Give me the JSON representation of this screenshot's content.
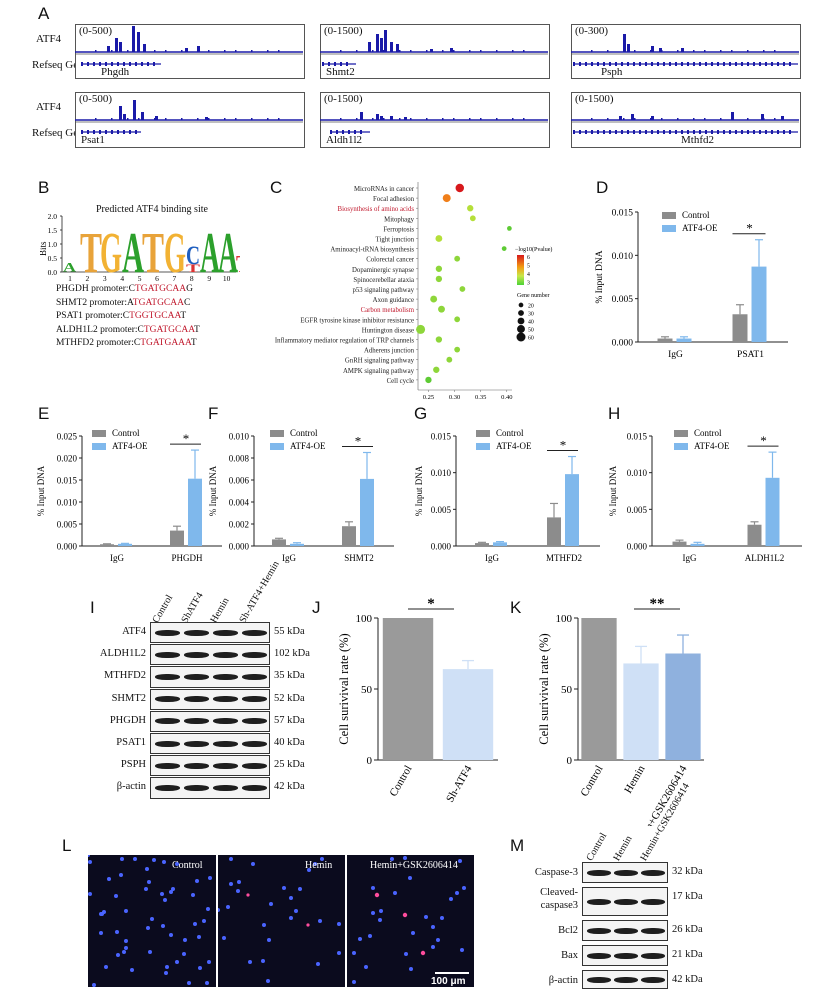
{
  "panels": {
    "A": "A",
    "B": "B",
    "C": "C",
    "D": "D",
    "E": "E",
    "F": "F",
    "G": "G",
    "H": "H",
    "I": "I",
    "J": "J",
    "K": "K",
    "L": "L",
    "M": "M"
  },
  "tracks": {
    "row_labels": {
      "atf4": "ATF4",
      "refseq": "Refseq Genes"
    },
    "items": [
      {
        "range": "(0-500)",
        "gene": "Phgdh"
      },
      {
        "range": "(0-1500)",
        "gene": "Shmt2"
      },
      {
        "range": "(0-300)",
        "gene": "Psph"
      },
      {
        "range": "(0-500)",
        "gene": "Psat1"
      },
      {
        "range": "(0-1500)",
        "gene": "Aldh1l2"
      },
      {
        "range": "(0-1500)",
        "gene": "Mthfd2"
      }
    ]
  },
  "motif": {
    "title": "Predicted ATF4 binding site",
    "ylabel": "Bits",
    "yticks": [
      "2.0",
      "1.5",
      "1.0",
      "0.5",
      "0.0"
    ],
    "positions": [
      "1",
      "2",
      "3",
      "4",
      "5",
      "6",
      "7",
      "8",
      "9",
      "10"
    ],
    "rows": [
      {
        "name": "PHGDH promoter:",
        "pre": "C",
        "site": "TGATGCAA",
        "post": "G"
      },
      {
        "name": "SHMT2 promoter:",
        "pre": "A",
        "site": "TGATGCAA",
        "post": "C"
      },
      {
        "name": "PSAT1 promoter:",
        "pre": "C",
        "site": "TGGTGCAA",
        "post": "T"
      },
      {
        "name": "ALDH1L2 promoter:",
        "pre": "C",
        "site": "TGATGCAA",
        "post": "T"
      },
      {
        "name": "MTHFD2 promoter:",
        "pre": "C",
        "site": "TGATGAAA",
        "post": "T"
      }
    ]
  },
  "kegg": {
    "terms": [
      "MicroRNAs in cancer",
      "Focal adhesion",
      "Biosynthesis of amino acids",
      "Mitophagy",
      "Ferroptosis",
      "Tight junction",
      "Aminoacyl-tRNA biosynthesis",
      "Colorectal cancer",
      "Dopaminergic synapse",
      "Spinocerebellar ataxia",
      "p53 signaling pathway",
      "Axon guidance",
      "Carbon metabolism",
      "EGFR tyrosine kinase inhibitor resistance",
      "Huntington disease",
      "Inflammatory mediator regulation of TRP channels",
      "Adherens junction",
      "GnRH signaling pathway",
      "AMPK signaling pathway",
      "Cell cycle"
    ],
    "xlabel": "Rich factor",
    "xticks": [
      "0.25",
      "0.30",
      "0.35",
      "0.40"
    ],
    "legend_color_title": "−log10(Pvalue)",
    "legend_color_ticks": [
      "6",
      "5",
      "4",
      "3"
    ],
    "legend_size_title": "Gene number",
    "legend_size_ticks": [
      "20",
      "30",
      "40",
      "50",
      "60"
    ]
  },
  "chart_data": [
    {
      "panel": "C",
      "type": "scatter",
      "xlabel": "Rich factor",
      "xlim": [
        0.23,
        0.41
      ],
      "categories": [
        "MicroRNAs in cancer",
        "Focal adhesion",
        "Biosynthesis of amino acids",
        "Mitophagy",
        "Ferroptosis",
        "Tight junction",
        "Aminoacyl-tRNA biosynthesis",
        "Colorectal cancer",
        "Dopaminergic synapse",
        "Spinocerebellar ataxia",
        "p53 signaling pathway",
        "Axon guidance",
        "Carbon metabolism",
        "EGFR tyrosine kinase inhibitor resistance",
        "Huntington disease",
        "Inflammatory mediator regulation of TRP channels",
        "Adherens junction",
        "GnRH signaling pathway",
        "AMPK signaling pathway",
        "Cell cycle"
      ],
      "x": [
        0.31,
        0.285,
        0.33,
        0.335,
        0.405,
        0.27,
        0.395,
        0.305,
        0.27,
        0.27,
        0.315,
        0.26,
        0.275,
        0.305,
        0.235,
        0.27,
        0.305,
        0.29,
        0.265,
        0.25
      ],
      "neglog10p": [
        6.0,
        5.2,
        4.2,
        4.0,
        3.4,
        4.0,
        3.3,
        3.8,
        3.8,
        3.8,
        3.6,
        3.8,
        3.8,
        3.6,
        3.6,
        3.6,
        3.5,
        3.5,
        3.5,
        3.4
      ],
      "gene_number": [
        55,
        50,
        35,
        30,
        20,
        40,
        20,
        30,
        35,
        35,
        30,
        40,
        40,
        30,
        60,
        35,
        30,
        30,
        35,
        35
      ]
    },
    {
      "panel": "D",
      "type": "bar",
      "categories": [
        "IgG",
        "PSAT1"
      ],
      "ylabel": "% Input DNA",
      "ylim": [
        0,
        0.015
      ],
      "yticks": [
        "0.000",
        "0.005",
        "0.010",
        "0.015"
      ],
      "series": [
        {
          "name": "Control",
          "color": "#8c8c8c",
          "values": [
            0.0004,
            0.0032
          ],
          "errors": [
            0.0002,
            0.0011
          ]
        },
        {
          "name": "ATF4-OE",
          "color": "#7fb8ec",
          "values": [
            0.0004,
            0.0087
          ],
          "errors": [
            0.0002,
            0.0031
          ]
        }
      ],
      "significance": "*"
    },
    {
      "panel": "E",
      "type": "bar",
      "categories": [
        "IgG",
        "PHGDH"
      ],
      "ylabel": "% Input DNA",
      "ylim": [
        0,
        0.025
      ],
      "yticks": [
        "0.000",
        "0.005",
        "0.010",
        "0.015",
        "0.020",
        "0.025"
      ],
      "series": [
        {
          "name": "Control",
          "color": "#8c8c8c",
          "values": [
            0.0004,
            0.0035
          ],
          "errors": [
            0.0001,
            0.001
          ]
        },
        {
          "name": "ATF4-OE",
          "color": "#7fb8ec",
          "values": [
            0.0005,
            0.0153
          ],
          "errors": [
            0.0001,
            0.0065
          ]
        }
      ],
      "significance": "*"
    },
    {
      "panel": "F",
      "type": "bar",
      "categories": [
        "IgG",
        "SHMT2"
      ],
      "ylabel": "% Input DNA",
      "ylim": [
        0,
        0.01
      ],
      "yticks": [
        "0.000",
        "0.002",
        "0.004",
        "0.006",
        "0.008",
        "0.010"
      ],
      "series": [
        {
          "name": "Control",
          "color": "#8c8c8c",
          "values": [
            0.0006,
            0.0018
          ],
          "errors": [
            0.0001,
            0.0004
          ]
        },
        {
          "name": "ATF4-OE",
          "color": "#7fb8ec",
          "values": [
            0.0002,
            0.0061
          ],
          "errors": [
            0.0001,
            0.0024
          ]
        }
      ],
      "significance": "*"
    },
    {
      "panel": "G",
      "type": "bar",
      "categories": [
        "IgG",
        "MTHFD2"
      ],
      "ylabel": "% Input DNA",
      "ylim": [
        0,
        0.015
      ],
      "yticks": [
        "0.000",
        "0.005",
        "0.010",
        "0.015"
      ],
      "series": [
        {
          "name": "Control",
          "color": "#8c8c8c",
          "values": [
            0.0004,
            0.0039
          ],
          "errors": [
            0.0001,
            0.0019
          ]
        },
        {
          "name": "ATF4-OE",
          "color": "#7fb8ec",
          "values": [
            0.0005,
            0.0098
          ],
          "errors": [
            0.0001,
            0.0024
          ]
        }
      ],
      "significance": "*"
    },
    {
      "panel": "H",
      "type": "bar",
      "categories": [
        "IgG",
        "ALDH1L2"
      ],
      "ylabel": "% Input DNA",
      "ylim": [
        0,
        0.015
      ],
      "yticks": [
        "0.000",
        "0.005",
        "0.010",
        "0.015"
      ],
      "series": [
        {
          "name": "Control",
          "color": "#8c8c8c",
          "values": [
            0.0006,
            0.0029
          ],
          "errors": [
            0.0002,
            0.0004
          ]
        },
        {
          "name": "ATF4-OE",
          "color": "#7fb8ec",
          "values": [
            0.0003,
            0.0093
          ],
          "errors": [
            0.0002,
            0.0035
          ]
        }
      ],
      "significance": "*"
    },
    {
      "panel": "J",
      "type": "bar",
      "categories": [
        "Control",
        "Sh-ATF4"
      ],
      "ylabel": "Cell surivival rate (%)",
      "ylim": [
        0,
        100
      ],
      "yticks": [
        "0",
        "50",
        "100"
      ],
      "values": [
        100,
        64
      ],
      "errors": [
        0,
        6
      ],
      "colors": [
        "#9a9a9a",
        "#cfe0f6"
      ],
      "significance": "*"
    },
    {
      "panel": "K",
      "type": "bar",
      "categories": [
        "Control",
        "Hemin",
        "Hemin+GSK2606414"
      ],
      "ylabel": "Cell surivival rate (%)",
      "ylim": [
        0,
        100
      ],
      "yticks": [
        "0",
        "50",
        "100"
      ],
      "values": [
        100,
        68,
        75
      ],
      "errors": [
        0,
        12,
        13
      ],
      "colors": [
        "#9a9a9a",
        "#cfe0f6",
        "#8fb1de"
      ],
      "significance": "**"
    }
  ],
  "legend": {
    "control": "Control",
    "oe": "ATF4-OE"
  },
  "blotI": {
    "columns": [
      "Control",
      "ShATF4",
      "Hemin",
      "Sh-ATF4+Hemin"
    ],
    "rows": [
      {
        "label": "ATF4",
        "kda": "55 kDa"
      },
      {
        "label": "ALDH1L2",
        "kda": "102 kDa"
      },
      {
        "label": "MTHFD2",
        "kda": "35 kDa"
      },
      {
        "label": "SHMT2",
        "kda": "52 kDa"
      },
      {
        "label": "PHGDH",
        "kda": "57 kDa"
      },
      {
        "label": "PSAT1",
        "kda": "40 kDa"
      },
      {
        "label": "PSPH",
        "kda": "25 kDa"
      },
      {
        "label": "β-actin",
        "kda": "42 kDa"
      }
    ]
  },
  "micro": {
    "labels": [
      "Control",
      "Hemin",
      "Hemin+GSK2606414"
    ],
    "scale": "100 μm"
  },
  "blotM": {
    "columns": [
      "Control",
      "Hemin",
      "Hemin+GSK2606414"
    ],
    "rows": [
      {
        "label": "Caspase-3",
        "kda": "32 kDa"
      },
      {
        "label": "Cleaved-\ncaspase3",
        "kda": "17 kDa"
      },
      {
        "label": "Bcl2",
        "kda": "26 kDa"
      },
      {
        "label": "Bax",
        "kda": "21 kDa"
      },
      {
        "label": "β-actin",
        "kda": "42 kDa"
      }
    ]
  }
}
